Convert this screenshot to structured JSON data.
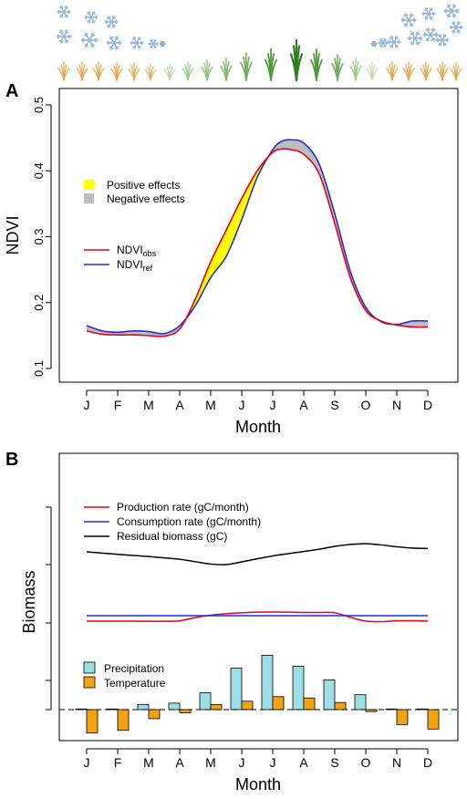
{
  "chart_data": [
    {
      "panel": "A",
      "type": "line",
      "xlabel": "Month",
      "ylabel": "NDVI",
      "ylim": [
        0.1,
        0.5
      ],
      "yticks": [
        0.1,
        0.2,
        0.3,
        0.4,
        0.5
      ],
      "ytick_labels": [
        "0.1",
        "0.2",
        "0.3",
        "0.4",
        "0.5"
      ],
      "categories": [
        "J",
        "F",
        "M",
        "A",
        "M",
        "J",
        "J",
        "A",
        "S",
        "O",
        "N",
        "D"
      ],
      "x": [
        1,
        1.5,
        2,
        2.5,
        3,
        3.5,
        4,
        4.5,
        5,
        5.5,
        6,
        6.5,
        7,
        7.3,
        7.6,
        8,
        8.5,
        9,
        9.5,
        10,
        10.5,
        11,
        11.5,
        12
      ],
      "series": [
        {
          "name": "NDVIobs",
          "label_main": "NDVI",
          "label_sub": "obs",
          "color": "#e8001c",
          "values": [
            0.157,
            0.152,
            0.151,
            0.151,
            0.15,
            0.149,
            0.16,
            0.205,
            0.262,
            0.31,
            0.358,
            0.4,
            0.428,
            0.433,
            0.432,
            0.425,
            0.395,
            0.32,
            0.238,
            0.188,
            0.172,
            0.166,
            0.163,
            0.163
          ]
        },
        {
          "name": "NDVIref",
          "label_main": "NDVI",
          "label_sub": "ref",
          "color": "#1f2fd9",
          "values": [
            0.165,
            0.157,
            0.155,
            0.157,
            0.156,
            0.153,
            0.165,
            0.195,
            0.238,
            0.27,
            0.326,
            0.39,
            0.432,
            0.445,
            0.447,
            0.442,
            0.41,
            0.335,
            0.248,
            0.193,
            0.171,
            0.167,
            0.172,
            0.172
          ]
        }
      ],
      "fill_legend": [
        {
          "label": "Positive effects",
          "color": "#ffff00"
        },
        {
          "label": "Negative effects",
          "color": "#bebebe"
        }
      ]
    },
    {
      "panel": "B",
      "type": "line",
      "xlabel": "Month",
      "ylabel": "Biomass",
      "categories": [
        "J",
        "F",
        "M",
        "A",
        "M",
        "J",
        "J",
        "A",
        "S",
        "O",
        "N",
        "D"
      ],
      "x": [
        1,
        1.5,
        2,
        2.5,
        3,
        3.5,
        4,
        4.5,
        5,
        5.5,
        6,
        6.5,
        7,
        7.5,
        8,
        8.5,
        9,
        9.5,
        10,
        10.5,
        11,
        11.5,
        12
      ],
      "series": [
        {
          "name": "Production rate (gC/month)",
          "color": "#e8001c",
          "values": [
            0.3,
            0.3,
            0.3,
            0.3,
            0.29,
            0.29,
            0.32,
            0.53,
            0.68,
            0.78,
            0.84,
            0.88,
            0.89,
            0.88,
            0.86,
            0.86,
            0.84,
            0.55,
            0.3,
            0.27,
            0.32,
            0.33,
            0.3
          ]
        },
        {
          "name": "Consumption rate (gC/month)",
          "color": "#1f2fd9",
          "values": [
            0.5,
            0.5,
            0.5,
            0.5,
            0.5,
            0.5,
            0.5,
            0.5,
            0.5,
            0.5,
            0.5,
            0.5,
            0.5,
            0.5,
            0.5,
            0.5,
            0.5,
            0.5,
            0.5,
            0.5,
            0.5,
            0.5,
            0.5
          ]
        },
        {
          "name": "Residual biomass (gC)",
          "color": "#000000",
          "values": [
            2.33,
            2.2,
            2.07,
            1.95,
            1.84,
            1.7,
            1.55,
            1.3,
            1.05,
            1.0,
            1.28,
            1.6,
            1.9,
            2.14,
            2.37,
            2.6,
            2.9,
            3.1,
            3.18,
            3.05,
            2.86,
            2.72,
            2.68
          ]
        }
      ],
      "bars": [
        {
          "name": "Precipitation",
          "color": "#9ddde6",
          "values": [
            0.1,
            0.1,
            0.8,
            1.0,
            2.6,
            6.4,
            8.4,
            6.7,
            4.6,
            2.3,
            0.1,
            0.1
          ]
        },
        {
          "name": "Temperature",
          "color": "#f5a210",
          "values": [
            -3.6,
            -3.2,
            -1.4,
            -0.5,
            0.8,
            1.3,
            2.0,
            1.8,
            1.1,
            -0.3,
            -2.3,
            -3.0
          ]
        }
      ]
    }
  ],
  "panels": {
    "a_label": "A",
    "b_label": "B"
  }
}
